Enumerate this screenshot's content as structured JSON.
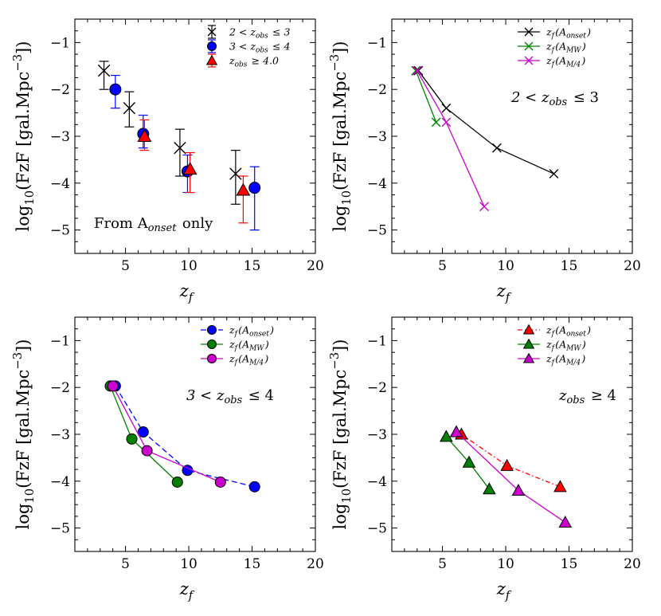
{
  "chart_data": [
    {
      "type": "scatter",
      "panel": "top-left",
      "xlabel": "z_f",
      "ylabel": "log10(FzF [gal.Mpc^-3])",
      "xlim": [
        1,
        20
      ],
      "ylim": [
        -5.5,
        -0.5
      ],
      "xticks": [
        5,
        10,
        15,
        20
      ],
      "yticks": [
        -5,
        -4,
        -3,
        -2,
        -1
      ],
      "xtick_labels": [
        "5",
        "10",
        "15",
        "20"
      ],
      "ytick_labels": [
        "−5",
        "−4",
        "−3",
        "−2",
        "−1"
      ],
      "legend_position": "top-right",
      "annotation": "From A_onset only",
      "series": [
        {
          "name": "2 < z_obs ≤ 3",
          "marker": "x",
          "color": "#000000",
          "errorbars": true,
          "x": [
            3.3,
            5.3,
            9.3,
            13.7
          ],
          "y": [
            -1.6,
            -2.4,
            -3.25,
            -3.8
          ],
          "yerr_low": [
            0.4,
            0.4,
            0.6,
            0.65
          ],
          "yerr_high": [
            0.2,
            0.35,
            0.4,
            0.5
          ]
        },
        {
          "name": "3 < z_obs ≤ 4",
          "marker": "o",
          "color": "#0000ff",
          "errorbars": true,
          "x": [
            4.2,
            6.4,
            9.9,
            15.2
          ],
          "y": [
            -2.0,
            -2.95,
            -3.75,
            -4.1
          ],
          "yerr_low": [
            0.4,
            0.3,
            0.45,
            0.9
          ],
          "yerr_high": [
            0.3,
            0.4,
            0.35,
            0.45
          ]
        },
        {
          "name": "z_obs ≥ 4.0",
          "marker": "^",
          "color": "#ff0000",
          "errorbars": true,
          "x": [
            6.5,
            10.1,
            14.3
          ],
          "y": [
            -3.0,
            -3.7,
            -4.15
          ],
          "yerr_low": [
            0.3,
            0.5,
            0.7
          ],
          "yerr_high": [
            0.35,
            0.35,
            0.3
          ]
        }
      ]
    },
    {
      "type": "line",
      "panel": "top-right",
      "xlabel": "z_f",
      "ylabel": "log10(FzF [gal.Mpc^-3])",
      "xlim": [
        1,
        20
      ],
      "ylim": [
        -5.5,
        -0.5
      ],
      "xticks": [
        5,
        10,
        15,
        20
      ],
      "yticks": [
        -5,
        -4,
        -3,
        -2,
        -1
      ],
      "xtick_labels": [
        "5",
        "10",
        "15",
        "20"
      ],
      "ytick_labels": [
        "−5",
        "−4",
        "−3",
        "−2",
        "−1"
      ],
      "legend_position": "top-right",
      "annotation": "2 < z_obs ≤ 3",
      "series": [
        {
          "name": "z_f(A_onset)",
          "marker": "x",
          "color": "#000000",
          "dash": "solid",
          "x": [
            3.1,
            5.3,
            9.3,
            13.8
          ],
          "y": [
            -1.6,
            -2.4,
            -3.25,
            -3.8
          ]
        },
        {
          "name": "z_f(A_MW)",
          "marker": "x",
          "color": "#008000",
          "dash": "solid",
          "x": [
            2.9,
            4.5
          ],
          "y": [
            -1.6,
            -2.7
          ]
        },
        {
          "name": "z_f(A_M/4)",
          "marker": "x",
          "color": "#cc00cc",
          "dash": "solid",
          "x": [
            3.0,
            5.3,
            8.3
          ],
          "y": [
            -1.6,
            -2.7,
            -4.5
          ]
        }
      ]
    },
    {
      "type": "line",
      "panel": "bottom-left",
      "xlabel": "z_f",
      "ylabel": "log10(FzF [gal.Mpc^-3])",
      "xlim": [
        1,
        20
      ],
      "ylim": [
        -5.5,
        -0.5
      ],
      "xticks": [
        5,
        10,
        15,
        20
      ],
      "yticks": [
        -5,
        -4,
        -3,
        -2,
        -1
      ],
      "xtick_labels": [
        "5",
        "10",
        "15",
        "20"
      ],
      "ytick_labels": [
        "−5",
        "−4",
        "−3",
        "−2",
        "−1"
      ],
      "legend_position": "top-right",
      "annotation": "3 < z_obs ≤ 4",
      "series": [
        {
          "name": "z_f(A_onset)",
          "marker": "o",
          "color": "#0000ff",
          "dash": "dashed",
          "x": [
            4.2,
            6.4,
            9.9,
            15.2
          ],
          "y": [
            -1.97,
            -2.95,
            -3.77,
            -4.12
          ]
        },
        {
          "name": "z_f(A_MW)",
          "marker": "o",
          "color": "#008000",
          "dash": "solid",
          "x": [
            3.8,
            5.5,
            9.1
          ],
          "y": [
            -1.97,
            -3.1,
            -4.02
          ]
        },
        {
          "name": "z_f(A_M/4)",
          "marker": "o",
          "color": "#cc00cc",
          "dash": "solid",
          "x": [
            4.0,
            6.7,
            12.5
          ],
          "y": [
            -1.97,
            -3.35,
            -4.02
          ]
        }
      ]
    },
    {
      "type": "line",
      "panel": "bottom-right",
      "xlabel": "z_f",
      "ylabel": "log10(FzF [gal.Mpc^-3])",
      "xlim": [
        1,
        20
      ],
      "ylim": [
        -5.5,
        -0.5
      ],
      "xticks": [
        5,
        10,
        15,
        20
      ],
      "yticks": [
        -5,
        -4,
        -3,
        -2,
        -1
      ],
      "xtick_labels": [
        "5",
        "10",
        "15",
        "20"
      ],
      "ytick_labels": [
        "−5",
        "−4",
        "−3",
        "−2",
        "−1"
      ],
      "legend_position": "top-right",
      "annotation": "z_obs ≥ 4",
      "series": [
        {
          "name": "z_f(A_onset)",
          "marker": "^",
          "color": "#ff0000",
          "dash": "dashdot",
          "x": [
            6.5,
            10.1,
            14.3
          ],
          "y": [
            -3.0,
            -3.67,
            -4.12
          ]
        },
        {
          "name": "z_f(A_MW)",
          "marker": "^",
          "color": "#008000",
          "dash": "solid",
          "x": [
            5.3,
            7.1,
            8.7
          ],
          "y": [
            -3.05,
            -3.6,
            -4.17
          ]
        },
        {
          "name": "z_f(A_M/4)",
          "marker": "^",
          "color": "#cc00cc",
          "dash": "solid",
          "x": [
            6.1,
            11.0,
            14.7
          ],
          "y": [
            -2.95,
            -4.2,
            -4.88
          ]
        }
      ]
    }
  ]
}
